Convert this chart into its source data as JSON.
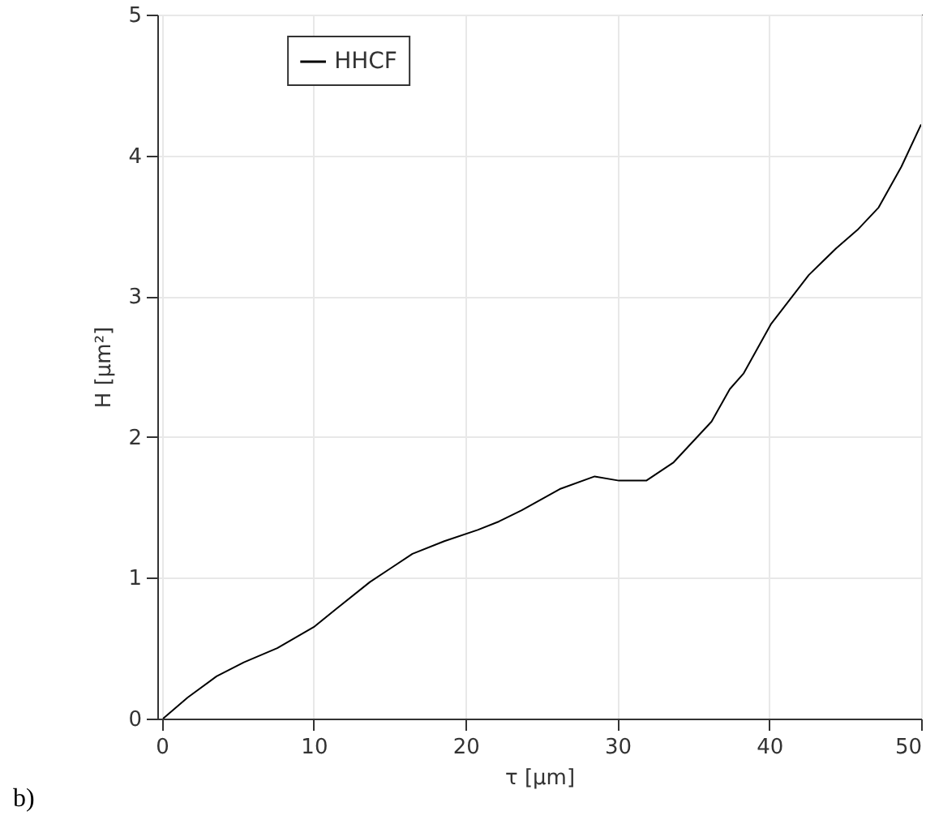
{
  "chart_data": {
    "type": "line",
    "xlabel": "τ [μm]",
    "ylabel": "H [μm²]",
    "annotations": [
      "b)"
    ],
    "xlim": [
      -0.3,
      50
    ],
    "ylim": [
      0,
      5
    ],
    "xticks": [
      0,
      10,
      20,
      30,
      40,
      50
    ],
    "yticks": [
      0,
      1,
      2,
      3,
      4,
      5
    ],
    "grid": true,
    "legend": "top left",
    "line_style": "solid",
    "marker": "none",
    "x": [
      0.08,
      1.7,
      3.6,
      5.4,
      7.6,
      10,
      11.5,
      13.7,
      15.1,
      16.5,
      18.6,
      20.8,
      22.2,
      23.7,
      26.2,
      28.5,
      30.1,
      31.9,
      33.7,
      36.2,
      37.4,
      38.3,
      40.1,
      42.6,
      44.4,
      45.8,
      47.2,
      48.7,
      50
    ],
    "series": [
      {
        "name": "HHCF",
        "color": "#000000",
        "values": [
          0.0,
          0.15,
          0.3,
          0.4,
          0.5,
          0.65,
          0.78,
          0.97,
          1.07,
          1.17,
          1.26,
          1.34,
          1.4,
          1.48,
          1.63,
          1.72,
          1.69,
          1.69,
          1.82,
          2.11,
          2.34,
          2.45,
          2.8,
          3.15,
          3.34,
          3.47,
          3.63,
          3.92,
          4.22
        ]
      }
    ]
  }
}
